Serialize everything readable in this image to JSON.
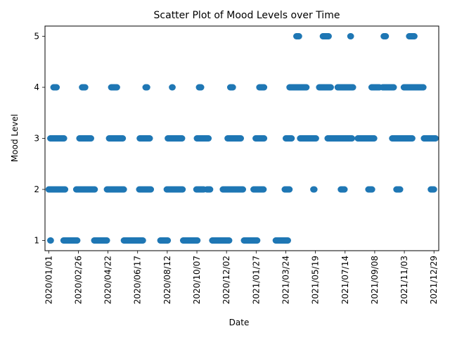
{
  "chart_data": {
    "type": "scatter",
    "title": "Scatter Plot of Mood Levels over Time",
    "xlabel": "Date",
    "ylabel": "Mood Level",
    "x_is_date": true,
    "xlim": [
      "2019-12-25",
      "2022-01-07"
    ],
    "ylim": [
      0.8,
      5.2
    ],
    "x_ticks": [
      "2020/01/01",
      "2020/02/26",
      "2020/04/22",
      "2020/06/17",
      "2020/08/12",
      "2020/10/07",
      "2020/12/02",
      "2021/01/27",
      "2021/03/24",
      "2021/05/19",
      "2021/07/14",
      "2021/09/08",
      "2021/11/03",
      "2021/12/29"
    ],
    "y_ticks": [
      1,
      2,
      3,
      4,
      5
    ],
    "grid": false,
    "marker_color": "#1f77b4",
    "series": [
      {
        "segments": [
          {
            "level": 1,
            "ranges": [
              [
                "2020-01-04",
                "2020-01-05"
              ],
              [
                "2020-01-29",
                "2020-02-24"
              ],
              [
                "2020-03-27",
                "2020-04-20"
              ],
              [
                "2020-05-22",
                "2020-06-27"
              ],
              [
                "2020-07-30",
                "2020-08-13"
              ],
              [
                "2020-09-11",
                "2020-10-08"
              ],
              [
                "2020-11-05",
                "2020-12-07"
              ],
              [
                "2021-01-04",
                "2021-01-29"
              ],
              [
                "2021-03-05",
                "2021-03-28"
              ]
            ]
          },
          {
            "level": 2,
            "ranges": [
              [
                "2020-01-01",
                "2020-02-01"
              ],
              [
                "2020-02-22",
                "2020-03-28"
              ],
              [
                "2020-04-20",
                "2020-05-22"
              ],
              [
                "2020-06-20",
                "2020-07-12"
              ],
              [
                "2020-08-11",
                "2020-09-10"
              ],
              [
                "2020-10-06",
                "2020-10-20"
              ],
              [
                "2020-10-26",
                "2020-11-01"
              ],
              [
                "2020-11-25",
                "2021-01-02"
              ],
              [
                "2021-01-22",
                "2021-02-10"
              ],
              [
                "2021-03-22",
                "2021-03-31"
              ],
              [
                "2021-05-15",
                "2021-05-17"
              ],
              [
                "2021-07-06",
                "2021-07-13"
              ],
              [
                "2021-08-27",
                "2021-09-03"
              ],
              [
                "2021-10-19",
                "2021-10-26"
              ],
              [
                "2021-12-23",
                "2021-12-29"
              ]
            ]
          },
          {
            "level": 3,
            "ranges": [
              [
                "2020-01-04",
                "2020-01-23"
              ],
              [
                "2020-01-25",
                "2020-01-30"
              ],
              [
                "2020-02-28",
                "2020-03-21"
              ],
              [
                "2020-04-24",
                "2020-05-20"
              ],
              [
                "2020-06-21",
                "2020-07-10"
              ],
              [
                "2020-08-13",
                "2020-09-09"
              ],
              [
                "2020-10-07",
                "2020-10-29"
              ],
              [
                "2020-12-04",
                "2020-12-29"
              ],
              [
                "2021-01-26",
                "2021-02-11"
              ],
              [
                "2021-03-24",
                "2021-04-04"
              ],
              [
                "2021-04-20",
                "2021-05-20"
              ],
              [
                "2021-06-11",
                "2021-07-27"
              ],
              [
                "2021-08-07",
                "2021-09-07"
              ],
              [
                "2021-10-11",
                "2021-11-18"
              ],
              [
                "2021-12-10",
                "2022-01-01"
              ]
            ]
          },
          {
            "level": 4,
            "ranges": [
              [
                "2020-01-10",
                "2020-01-16"
              ],
              [
                "2020-03-04",
                "2020-03-10"
              ],
              [
                "2020-04-28",
                "2020-05-09"
              ],
              [
                "2020-07-02",
                "2020-07-05"
              ],
              [
                "2020-08-21",
                "2020-08-22"
              ],
              [
                "2020-10-11",
                "2020-10-15"
              ],
              [
                "2020-12-09",
                "2020-12-14"
              ],
              [
                "2021-02-02",
                "2021-02-11"
              ],
              [
                "2021-03-31",
                "2021-05-02"
              ],
              [
                "2021-05-26",
                "2021-06-17"
              ],
              [
                "2021-06-30",
                "2021-07-29"
              ],
              [
                "2021-09-02",
                "2021-09-17"
              ],
              [
                "2021-09-23",
                "2021-10-14"
              ],
              [
                "2021-11-02",
                "2021-12-09"
              ]
            ]
          },
          {
            "level": 5,
            "ranges": [
              [
                "2021-04-13",
                "2021-04-18"
              ],
              [
                "2021-06-02",
                "2021-06-13"
              ],
              [
                "2021-07-24",
                "2021-07-25"
              ],
              [
                "2021-09-25",
                "2021-09-29"
              ],
              [
                "2021-11-12",
                "2021-11-22"
              ]
            ]
          }
        ]
      }
    ]
  }
}
